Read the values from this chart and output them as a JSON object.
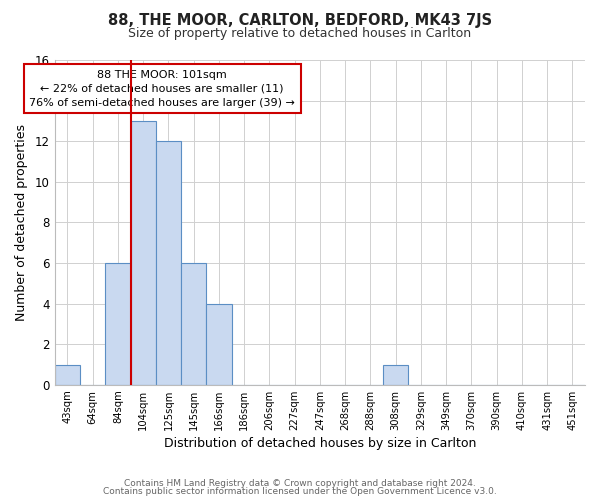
{
  "title1": "88, THE MOOR, CARLTON, BEDFORD, MK43 7JS",
  "title2": "Size of property relative to detached houses in Carlton",
  "xlabel": "Distribution of detached houses by size in Carlton",
  "ylabel": "Number of detached properties",
  "bin_labels": [
    "43sqm",
    "64sqm",
    "84sqm",
    "104sqm",
    "125sqm",
    "145sqm",
    "166sqm",
    "186sqm",
    "206sqm",
    "227sqm",
    "247sqm",
    "268sqm",
    "288sqm",
    "308sqm",
    "329sqm",
    "349sqm",
    "370sqm",
    "390sqm",
    "410sqm",
    "431sqm",
    "451sqm"
  ],
  "bar_heights": [
    1,
    0,
    6,
    13,
    12,
    6,
    4,
    0,
    0,
    0,
    0,
    0,
    0,
    1,
    0,
    0,
    0,
    0,
    0,
    0,
    0
  ],
  "bar_color": "#c9d9f0",
  "bar_edge_color": "#5b8ec4",
  "vline_x_index": 3,
  "vline_color": "#cc0000",
  "ylim": [
    0,
    16
  ],
  "yticks": [
    0,
    2,
    4,
    6,
    8,
    10,
    12,
    14,
    16
  ],
  "annotation_line1": "88 THE MOOR: 101sqm",
  "annotation_line2": "← 22% of detached houses are smaller (11)",
  "annotation_line3": "76% of semi-detached houses are larger (39) →",
  "footer1": "Contains HM Land Registry data © Crown copyright and database right 2024.",
  "footer2": "Contains public sector information licensed under the Open Government Licence v3.0.",
  "background_color": "#ffffff",
  "grid_color": "#d0d0d0"
}
